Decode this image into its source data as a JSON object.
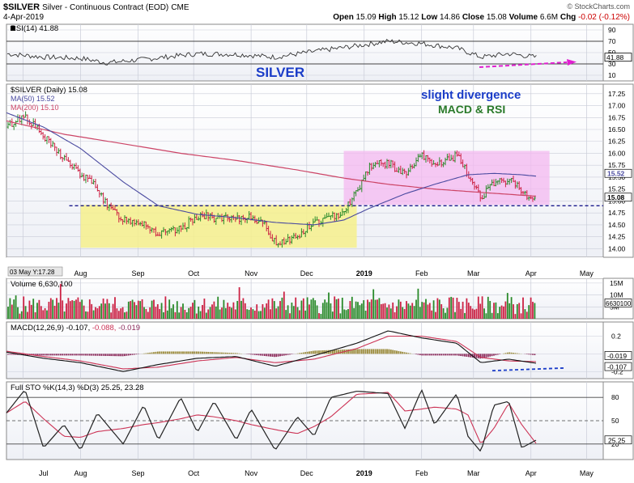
{
  "header": {
    "symbol": "$SILVER",
    "description": "Silver - Continuous Contract (EOD)",
    "exchange": "CME",
    "date": "4-Apr-2019",
    "copyright": "© StockCharts.com",
    "open_label": "Open",
    "open": "15.09",
    "high_label": "High",
    "high": "15.12",
    "low_label": "Low",
    "low": "14.86",
    "close_label": "Close",
    "close": "15.08",
    "volume_label": "Volume",
    "volume": "6.6M",
    "chg_label": "Chg",
    "chg": "-0.02 (-0.12%)",
    "chg_color": "#cc0000"
  },
  "rsi_panel": {
    "legend": "RSI(14) 41.88",
    "value_badge": "41.88",
    "ticks": [
      "90",
      "70",
      "50",
      "30",
      "10"
    ],
    "annotation": "SILVER"
  },
  "price_panel": {
    "legend_main": "$SILVER (Daily) 15.08",
    "legend_ma50": "MA(50) 15.52",
    "legend_ma200": "MA(200) 15.10",
    "ticks": [
      "17.25",
      "17.00",
      "16.75",
      "16.50",
      "16.25",
      "16.00",
      "15.75",
      "15.50",
      "15.25",
      "15.00",
      "14.75",
      "14.50",
      "14.25",
      "14.00"
    ],
    "badge_ma50": "15.52",
    "badge_close": "15.08",
    "badge_ma200": "15.10",
    "annotation_1": "slight divergence",
    "annotation_2": "MACD & RSI",
    "date_flag": "03 May Y:17.28",
    "ma50_color": "#4a4aa0",
    "ma200_color": "#cc4466",
    "support_color": "#1a1a8c",
    "zone1_color": "#f6f08c",
    "zone2_color": "#f4b8f0"
  },
  "volume_panel": {
    "legend": "Volume 6,630,100",
    "ticks": [
      "15M",
      "10M",
      "5M"
    ],
    "badge": "6630100",
    "up_color": "#2a8a2a",
    "down_color": "#cc2244"
  },
  "macd_panel": {
    "legend_prefix": "MACD(12,26,9)",
    "legend_v1": "-0.107,",
    "legend_v2": "-0.088,",
    "legend_v3": "-0.019",
    "ticks": [
      "0.2",
      "0.0",
      "-0.2"
    ],
    "badge_hist": "-0.019",
    "badge_macd": "-0.107"
  },
  "sto_panel": {
    "legend": "Full STO %K(14,3) %D(3) 25.25, 23.28",
    "ticks": [
      "80",
      "50",
      "20"
    ],
    "badge": "25.25"
  },
  "time_axis": {
    "upper_labels": [
      "Aug",
      "Sep",
      "Oct",
      "Nov",
      "Dec",
      "2019",
      "Feb",
      "Mar",
      "Apr",
      "May"
    ],
    "lower_labels": [
      "Jul",
      "Aug",
      "Sep",
      "Oct",
      "Nov",
      "Dec",
      "2019",
      "Feb",
      "Mar",
      "Apr",
      "May"
    ]
  },
  "chart_data": {
    "type": "line",
    "title": "$SILVER Silver - Continuous Contract (EOD) CME",
    "xlabel": "",
    "ylabel": "",
    "x_range": [
      "2018-06-22",
      "2019-05-10"
    ],
    "grid": true,
    "price_ylim": [
      13.82,
      17.45
    ],
    "close_series": {
      "x": [
        "2018-06-22",
        "2018-07-02",
        "2018-07-12",
        "2018-07-23",
        "2018-08-01",
        "2018-08-10",
        "2018-08-15",
        "2018-08-24",
        "2018-09-04",
        "2018-09-12",
        "2018-09-24",
        "2018-10-03",
        "2018-10-12",
        "2018-10-24",
        "2018-11-01",
        "2018-11-09",
        "2018-11-14",
        "2018-11-26",
        "2018-12-05",
        "2018-12-14",
        "2018-12-21",
        "2018-12-28",
        "2019-01-04",
        "2019-01-14",
        "2019-01-23",
        "2019-02-01",
        "2019-02-08",
        "2019-02-20",
        "2019-02-26",
        "2019-03-05",
        "2019-03-12",
        "2019-03-20",
        "2019-03-27",
        "2019-04-02",
        "2019-04-04"
      ],
      "values": [
        16.55,
        16.8,
        16.35,
        15.9,
        15.55,
        15.3,
        14.9,
        14.62,
        14.55,
        14.3,
        14.4,
        14.7,
        14.65,
        14.6,
        14.7,
        14.45,
        14.12,
        14.25,
        14.55,
        14.65,
        14.8,
        15.2,
        15.75,
        15.8,
        15.55,
        15.95,
        15.75,
        15.95,
        15.55,
        15.1,
        15.35,
        15.45,
        15.25,
        15.0,
        15.08
      ]
    },
    "ma50_series": {
      "x": [
        "2018-06-22",
        "2018-07-12",
        "2018-08-01",
        "2018-08-24",
        "2018-09-12",
        "2018-10-03",
        "2018-10-24",
        "2018-11-14",
        "2018-12-05",
        "2018-12-21",
        "2019-01-04",
        "2019-01-23",
        "2019-02-08",
        "2019-02-26",
        "2019-03-12",
        "2019-03-27",
        "2019-04-04"
      ],
      "values": [
        16.85,
        16.55,
        16.1,
        15.4,
        14.9,
        14.72,
        14.65,
        14.55,
        14.5,
        14.6,
        14.85,
        15.15,
        15.35,
        15.55,
        15.58,
        15.55,
        15.52
      ]
    },
    "ma200_series": {
      "x": [
        "2018-06-22",
        "2018-07-23",
        "2018-08-24",
        "2018-09-24",
        "2018-10-24",
        "2018-11-26",
        "2018-12-21",
        "2019-01-14",
        "2019-02-08",
        "2019-03-05",
        "2019-04-04"
      ],
      "values": [
        16.68,
        16.4,
        16.2,
        16.0,
        15.85,
        15.65,
        15.48,
        15.35,
        15.25,
        15.18,
        15.1
      ]
    },
    "support_level": 14.9,
    "zones": [
      {
        "x0": "2018-08-01",
        "x1": "2018-12-28",
        "y0": 14.02,
        "y1": 14.92
      },
      {
        "x0": "2018-12-21",
        "x1": "2019-04-11",
        "y0": 14.92,
        "y1": 16.05
      }
    ],
    "volume": {
      "ylim": [
        0,
        17000000
      ],
      "last": 6630100,
      "typical_range": [
        2000000,
        12000000
      ]
    },
    "rsi": {
      "ylim": [
        0,
        100
      ],
      "levels": [
        30,
        70
      ],
      "last": 41.88,
      "x": [
        "2018-06-22",
        "2018-07-12",
        "2018-08-01",
        "2018-08-15",
        "2018-09-04",
        "2018-10-03",
        "2018-10-24",
        "2018-11-14",
        "2018-12-05",
        "2018-12-28",
        "2019-01-14",
        "2019-02-01",
        "2019-02-20",
        "2019-03-05",
        "2019-03-20",
        "2019-04-04"
      ],
      "values": [
        48,
        42,
        40,
        32,
        38,
        48,
        47,
        42,
        52,
        62,
        70,
        66,
        58,
        42,
        48,
        41.88
      ]
    },
    "macd": {
      "ylim": [
        -0.28,
        0.36
      ],
      "macd_last": -0.107,
      "signal_last": -0.088,
      "hist_last": -0.019,
      "x": [
        "2018-06-22",
        "2018-07-12",
        "2018-08-01",
        "2018-08-24",
        "2018-09-12",
        "2018-10-03",
        "2018-10-24",
        "2018-11-14",
        "2018-12-05",
        "2018-12-28",
        "2019-01-14",
        "2019-02-01",
        "2019-02-20",
        "2019-03-05",
        "2019-03-20",
        "2019-04-04"
      ],
      "macd_values": [
        0.02,
        -0.05,
        -0.1,
        -0.2,
        -0.12,
        -0.05,
        -0.03,
        -0.14,
        -0.02,
        0.12,
        0.26,
        0.18,
        0.12,
        -0.1,
        -0.06,
        -0.107
      ],
      "signal_values": [
        0.03,
        -0.03,
        -0.08,
        -0.17,
        -0.15,
        -0.08,
        -0.04,
        -0.1,
        -0.06,
        0.06,
        0.2,
        0.2,
        0.14,
        -0.04,
        -0.08,
        -0.088
      ]
    },
    "stochastic": {
      "ylim": [
        0,
        100
      ],
      "levels": [
        20,
        50,
        80
      ],
      "k_last": 25.25,
      "d_last": 23.28,
      "x": [
        "2018-06-22",
        "2018-07-02",
        "2018-07-12",
        "2018-07-23",
        "2018-08-01",
        "2018-08-10",
        "2018-08-24",
        "2018-09-04",
        "2018-09-12",
        "2018-09-24",
        "2018-10-03",
        "2018-10-12",
        "2018-10-24",
        "2018-11-01",
        "2018-11-14",
        "2018-11-26",
        "2018-12-05",
        "2018-12-14",
        "2018-12-28",
        "2019-01-14",
        "2019-01-23",
        "2019-02-01",
        "2019-02-08",
        "2019-02-20",
        "2019-02-26",
        "2019-03-05",
        "2019-03-12",
        "2019-03-20",
        "2019-03-27",
        "2019-04-04"
      ],
      "k_values": [
        60,
        90,
        15,
        45,
        12,
        60,
        20,
        70,
        25,
        80,
        35,
        75,
        25,
        65,
        12,
        55,
        30,
        80,
        88,
        85,
        40,
        90,
        45,
        85,
        30,
        10,
        70,
        75,
        15,
        25.25
      ]
    }
  }
}
